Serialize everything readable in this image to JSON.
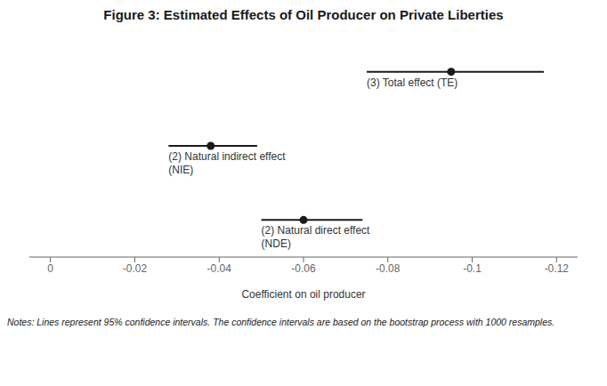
{
  "chart_data": {
    "type": "forest",
    "title": "Figure 3: Estimated Effects of Oil Producer on Private Liberties",
    "x_label": "Coefficient on oil producer",
    "notes": "Notes: Lines represent 95% confidence intervals. The confidence intervals are based on the bootstrap process with 1000 resamples.",
    "categories": [
      "(3) Total effect (TE)",
      "(2) Natural indirect effect\n(NIE)",
      "(2) Natural direct effect\n(NDE)"
    ],
    "values": [
      -0.095,
      -0.038,
      -0.06
    ],
    "ci_low": [
      -0.075,
      -0.028,
      -0.05
    ],
    "ci_high": [
      -0.117,
      -0.049,
      -0.074
    ],
    "xlim": [
      0.005,
      -0.125
    ],
    "xticks": [
      0,
      -0.02,
      -0.04,
      -0.06,
      -0.08,
      -0.1,
      -0.12
    ],
    "color": "#1a1a1a",
    "grid": false,
    "tick_labels": "x"
  }
}
